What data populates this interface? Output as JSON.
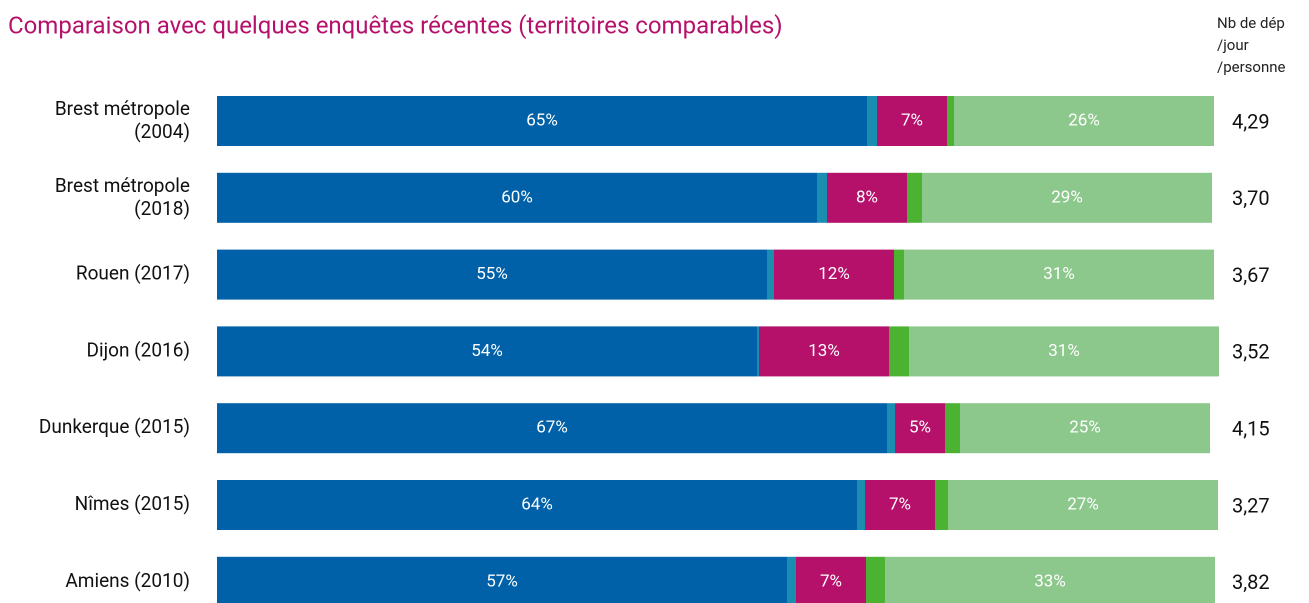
{
  "chart_data": {
    "type": "stacked-bar-horizontal",
    "title": "Comparaison avec quelques enquêtes récentes (territoires comparables)",
    "categories": [
      "Brest métropole (2004)",
      "Brest métropole (2018)",
      "Rouen (2017)",
      "Dijon (2016)",
      "Dunkerque (2015)",
      "Nîmes (2015)",
      "Amiens (2010)"
    ],
    "xlim": [
      0,
      100
    ],
    "series": [
      {
        "color": "#0061a8",
        "values": [
          65,
          60,
          55,
          54,
          67,
          64,
          57
        ],
        "value_labels": [
          "65%",
          "60%",
          "55%",
          "54%",
          "67%",
          "64%",
          "57%"
        ]
      },
      {
        "color": "#1a8db0",
        "values": [
          1,
          1,
          0.7,
          0.2,
          0.8,
          0.8,
          0.9
        ]
      },
      {
        "color": "#b5106a",
        "values": [
          7,
          8,
          12,
          13,
          5,
          7,
          7
        ],
        "value_labels": [
          "7%",
          "8%",
          "12%",
          "13%",
          "5%",
          "7%",
          "7%"
        ]
      },
      {
        "color": "#4bb232",
        "values": [
          0.7,
          1.5,
          1,
          2,
          1.5,
          1.3,
          1.9
        ]
      },
      {
        "color": "#8cc78c",
        "values": [
          26,
          29,
          31,
          31,
          25,
          27,
          33
        ],
        "value_labels": [
          "26%",
          "29%",
          "31%",
          "31%",
          "25%",
          "27%",
          "33%"
        ]
      }
    ],
    "side_column": {
      "header": [
        "Nb de dép",
        "/jour",
        "/personne"
      ],
      "values": [
        "4,29",
        "3,70",
        "3,67",
        "3,52",
        "4,15",
        "3,27",
        "3,82"
      ]
    }
  }
}
